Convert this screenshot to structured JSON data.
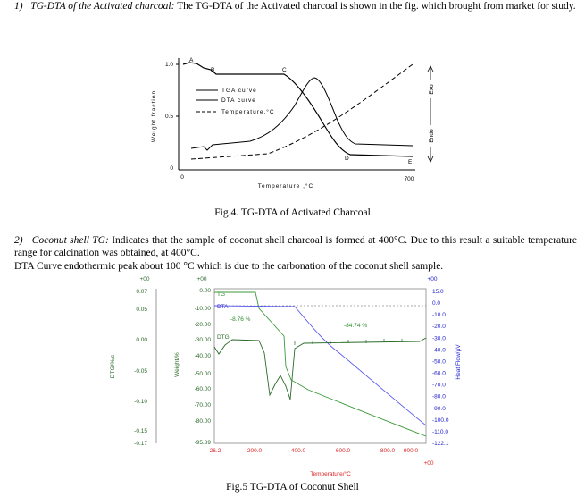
{
  "items": [
    {
      "number": "1)",
      "title": "TG-DTA of the Activated charcoal:",
      "text": "The TG-DTA of the Activated charcoal is shown in the fig. which brought from market for study."
    },
    {
      "number": "2)",
      "title": "Coconut shell TG:",
      "text": "Indicates that the sample of coconut shell charcoal is formed at 400°C. Due to this result a suitable temperature range for calcination was obtained, at 400°C."
    }
  ],
  "figure1": {
    "yticks": [
      "1.0",
      "0.5",
      "0"
    ],
    "xticks": [
      "0",
      "700"
    ],
    "y_label": "Weight fraction",
    "x_label": "Temperature ,°C",
    "points": [
      "A",
      "B",
      "C",
      "D",
      "E"
    ],
    "legend": [
      "TGA curve",
      "DTA curve",
      "Temperature,°C"
    ],
    "exo": "Exo",
    "endo": "Endo",
    "caption": "Fig.4. TG-DTA of Activated Charcoal"
  },
  "paragraph": "DTA Curve endothermic peak about 100 °C which is due to the carbonation of the coconut shell sample.",
  "figure2": {
    "headers": [
      "+00",
      "+00",
      "+00",
      "+00"
    ],
    "dtg_ticks": [
      "0.07",
      "0.05",
      "0.00",
      "-0.05",
      "-0.10",
      "-0.15",
      "-0.17"
    ],
    "weight_ticks": [
      "0.00",
      "-10.00",
      "-20.00",
      "-30.00",
      "-40.00",
      "-50.00",
      "-60.00",
      "-70.00",
      "-80.00",
      "-95.89"
    ],
    "heat_ticks": [
      "15.0",
      "0.0",
      "-10.0",
      "-20.0",
      "-30.0",
      "-40.0",
      "-50.0",
      "-60.0",
      "-70.0",
      "-80.0",
      "-90.0",
      "-100.0",
      "-110.0",
      "-122.1"
    ],
    "x_ticks": [
      "26.2",
      "200.0",
      "400.0",
      "600.0",
      "800.0",
      "900.0"
    ],
    "dtg_label": "DTG/%/s",
    "weight_label": "Weight/%",
    "heat_label": "Heat Flow/µV",
    "x_label": "Temperature/°C",
    "curve_labels": [
      "TG",
      "DTA",
      "DTG",
      "-8.76 %",
      "-84.74 %"
    ],
    "caption": "Fig.5 TG-DTA of Coconut Shell"
  }
}
